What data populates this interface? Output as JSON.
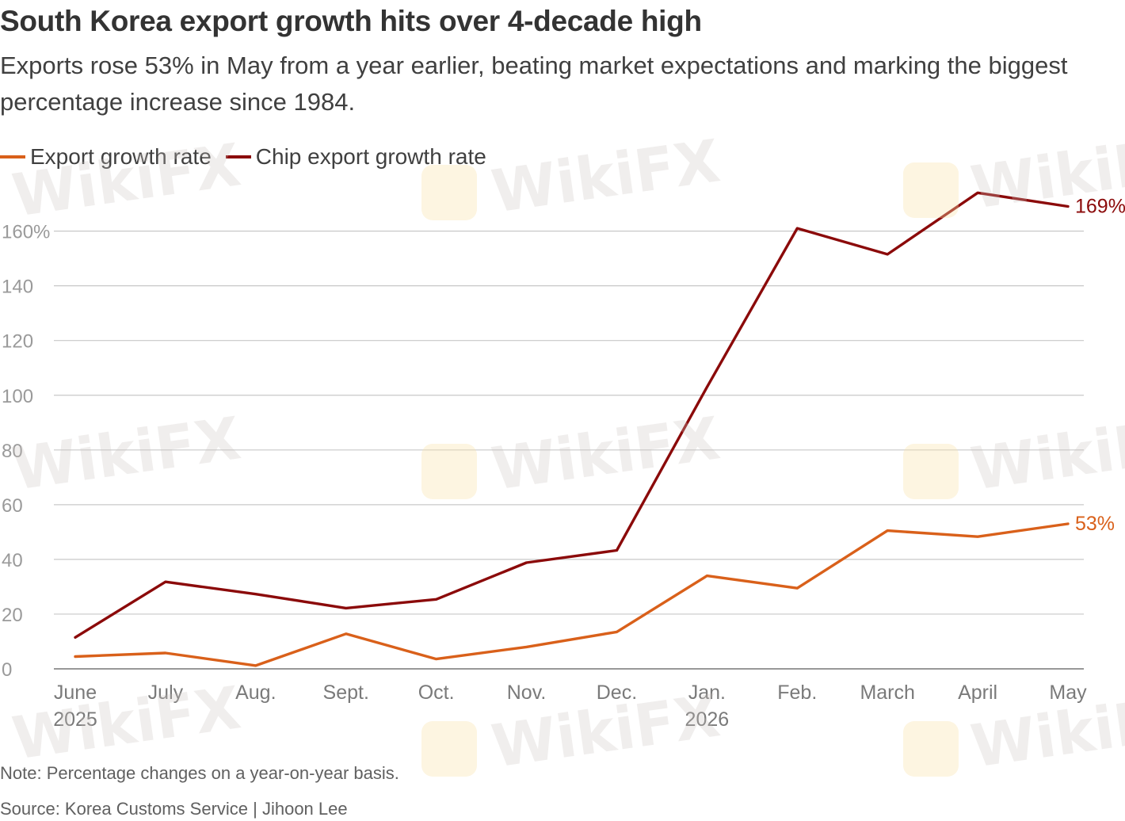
{
  "header": {
    "title": "South Korea export growth hits over 4-decade high",
    "subtitle": "Exports rose 53% in May from a year earlier, beating market expectations and marking the biggest percentage increase since 1984."
  },
  "legend": {
    "items": [
      {
        "label": "Export growth rate",
        "color": "#d9601a"
      },
      {
        "label": "Chip export growth rate",
        "color": "#8b0a0a"
      }
    ]
  },
  "chart_data": {
    "type": "line",
    "x": [
      "June",
      "July",
      "Aug.",
      "Sept.",
      "Oct.",
      "Nov.",
      "Dec.",
      "Jan.",
      "Feb.",
      "March",
      "April",
      "May"
    ],
    "x_year_labels": {
      "0": "2025",
      "7": "2026"
    },
    "ylim": [
      0,
      170
    ],
    "y_ticks": [
      0,
      20,
      40,
      60,
      80,
      100,
      120,
      140,
      160
    ],
    "y_tick_labels": [
      "0",
      "20",
      "40",
      "60",
      "80",
      "100",
      "120",
      "140",
      "160%"
    ],
    "grid": true,
    "legend_position": "top-left",
    "series": [
      {
        "name": "Export growth rate",
        "color": "#d9601a",
        "values": [
          4.5,
          5.8,
          1.2,
          12.8,
          3.6,
          8.0,
          13.5,
          34.0,
          29.5,
          50.5,
          48.3,
          53.0
        ],
        "end_label": "53%"
      },
      {
        "name": "Chip export growth rate",
        "color": "#8b0a0a",
        "values": [
          11.5,
          31.8,
          27.3,
          22.2,
          25.4,
          38.8,
          43.3,
          103.0,
          161.0,
          151.5,
          174.0,
          169.0
        ],
        "end_label": "169%"
      }
    ]
  },
  "footer": {
    "note": "Note: Percentage changes on a year-on-year basis.",
    "source": "Source: Korea Customs Service |  Jihoon Lee"
  },
  "watermark": {
    "text": "WikiFX"
  }
}
